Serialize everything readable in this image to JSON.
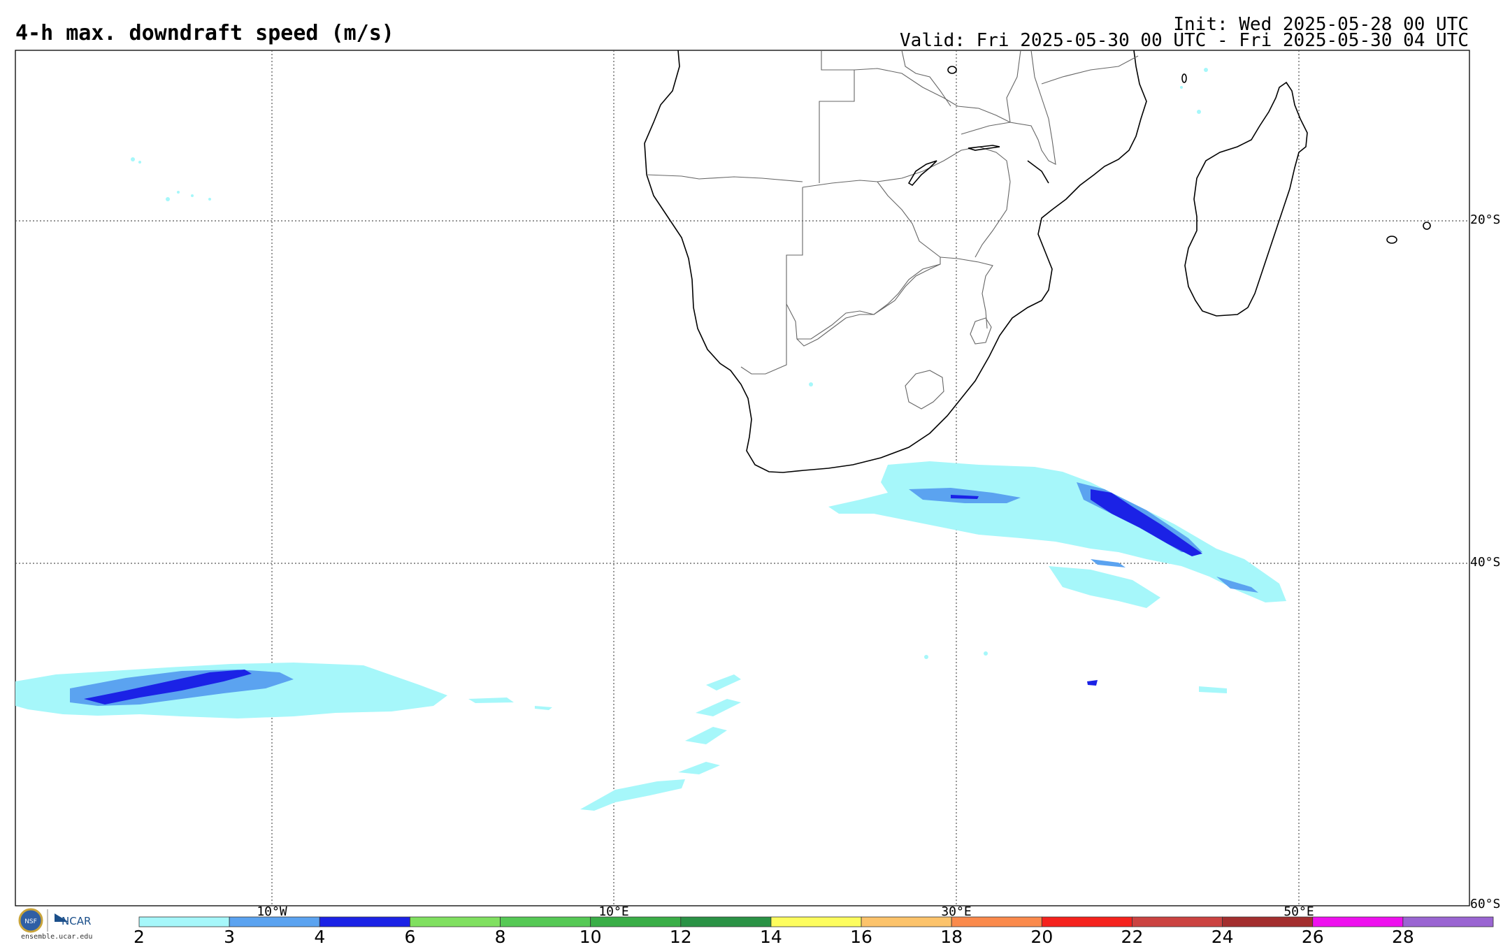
{
  "title": "4-h max. downdraft speed (m/s)",
  "init": "Init: Wed 2025-05-28 00 UTC",
  "valid": "Valid: Fri 2025-05-30 00 UTC - Fri 2025-05-30 04 UTC",
  "lat_labels": [
    "20°S",
    "40°S",
    "60°S"
  ],
  "lon_labels": [
    "10°W",
    "10°E",
    "30°E",
    "50°E"
  ],
  "colorbar": {
    "ticks": [
      "2",
      "3",
      "4",
      "6",
      "8",
      "10",
      "12",
      "14",
      "16",
      "18",
      "20",
      "22",
      "24",
      "26",
      "28"
    ],
    "colors": [
      "#a6f7fa",
      "#5ba3f0",
      "#1b22e6",
      "#80e060",
      "#56c955",
      "#3aae47",
      "#2a9245",
      "#fdfd5e",
      "#fcc36b",
      "#fa8a4c",
      "#f5221d",
      "#cb4341",
      "#a32e2e",
      "#ee10ee",
      "#9a65d2"
    ]
  },
  "logo": {
    "org1": "NSF",
    "org2": "NCAR",
    "site": "ensemble.ucar.edu"
  }
}
